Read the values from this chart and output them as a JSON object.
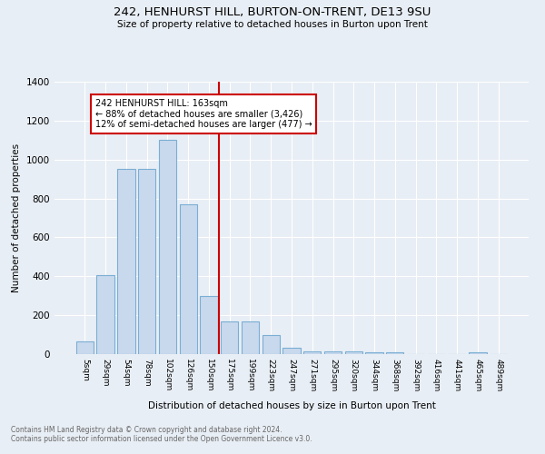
{
  "title": "242, HENHURST HILL, BURTON-ON-TRENT, DE13 9SU",
  "subtitle": "Size of property relative to detached houses in Burton upon Trent",
  "xlabel": "Distribution of detached houses by size in Burton upon Trent",
  "ylabel": "Number of detached properties",
  "footnote1": "Contains HM Land Registry data © Crown copyright and database right 2024.",
  "footnote2": "Contains public sector information licensed under the Open Government Licence v3.0.",
  "bar_labels": [
    "5sqm",
    "29sqm",
    "54sqm",
    "78sqm",
    "102sqm",
    "126sqm",
    "150sqm",
    "175sqm",
    "199sqm",
    "223sqm",
    "247sqm",
    "271sqm",
    "295sqm",
    "320sqm",
    "344sqm",
    "368sqm",
    "392sqm",
    "416sqm",
    "441sqm",
    "465sqm",
    "489sqm"
  ],
  "bar_values": [
    65,
    405,
    950,
    950,
    1100,
    770,
    300,
    170,
    170,
    100,
    35,
    15,
    15,
    15,
    10,
    10,
    0,
    0,
    0,
    10,
    0
  ],
  "bar_color": "#c9d9ed",
  "bar_edge_color": "#7aaed4",
  "marker_index": 7,
  "marker_line_color": "#cc0000",
  "annotation_text": "242 HENHURST HILL: 163sqm\n← 88% of detached houses are smaller (3,426)\n12% of semi-detached houses are larger (477) →",
  "annotation_box_color": "#ffffff",
  "annotation_box_edge": "#cc0000",
  "ylim": [
    0,
    1400
  ],
  "yticks": [
    0,
    200,
    400,
    600,
    800,
    1000,
    1200,
    1400
  ],
  "bg_color": "#e8eef5",
  "plot_bg_color": "#e8eef5",
  "grid_color": "#ffffff"
}
